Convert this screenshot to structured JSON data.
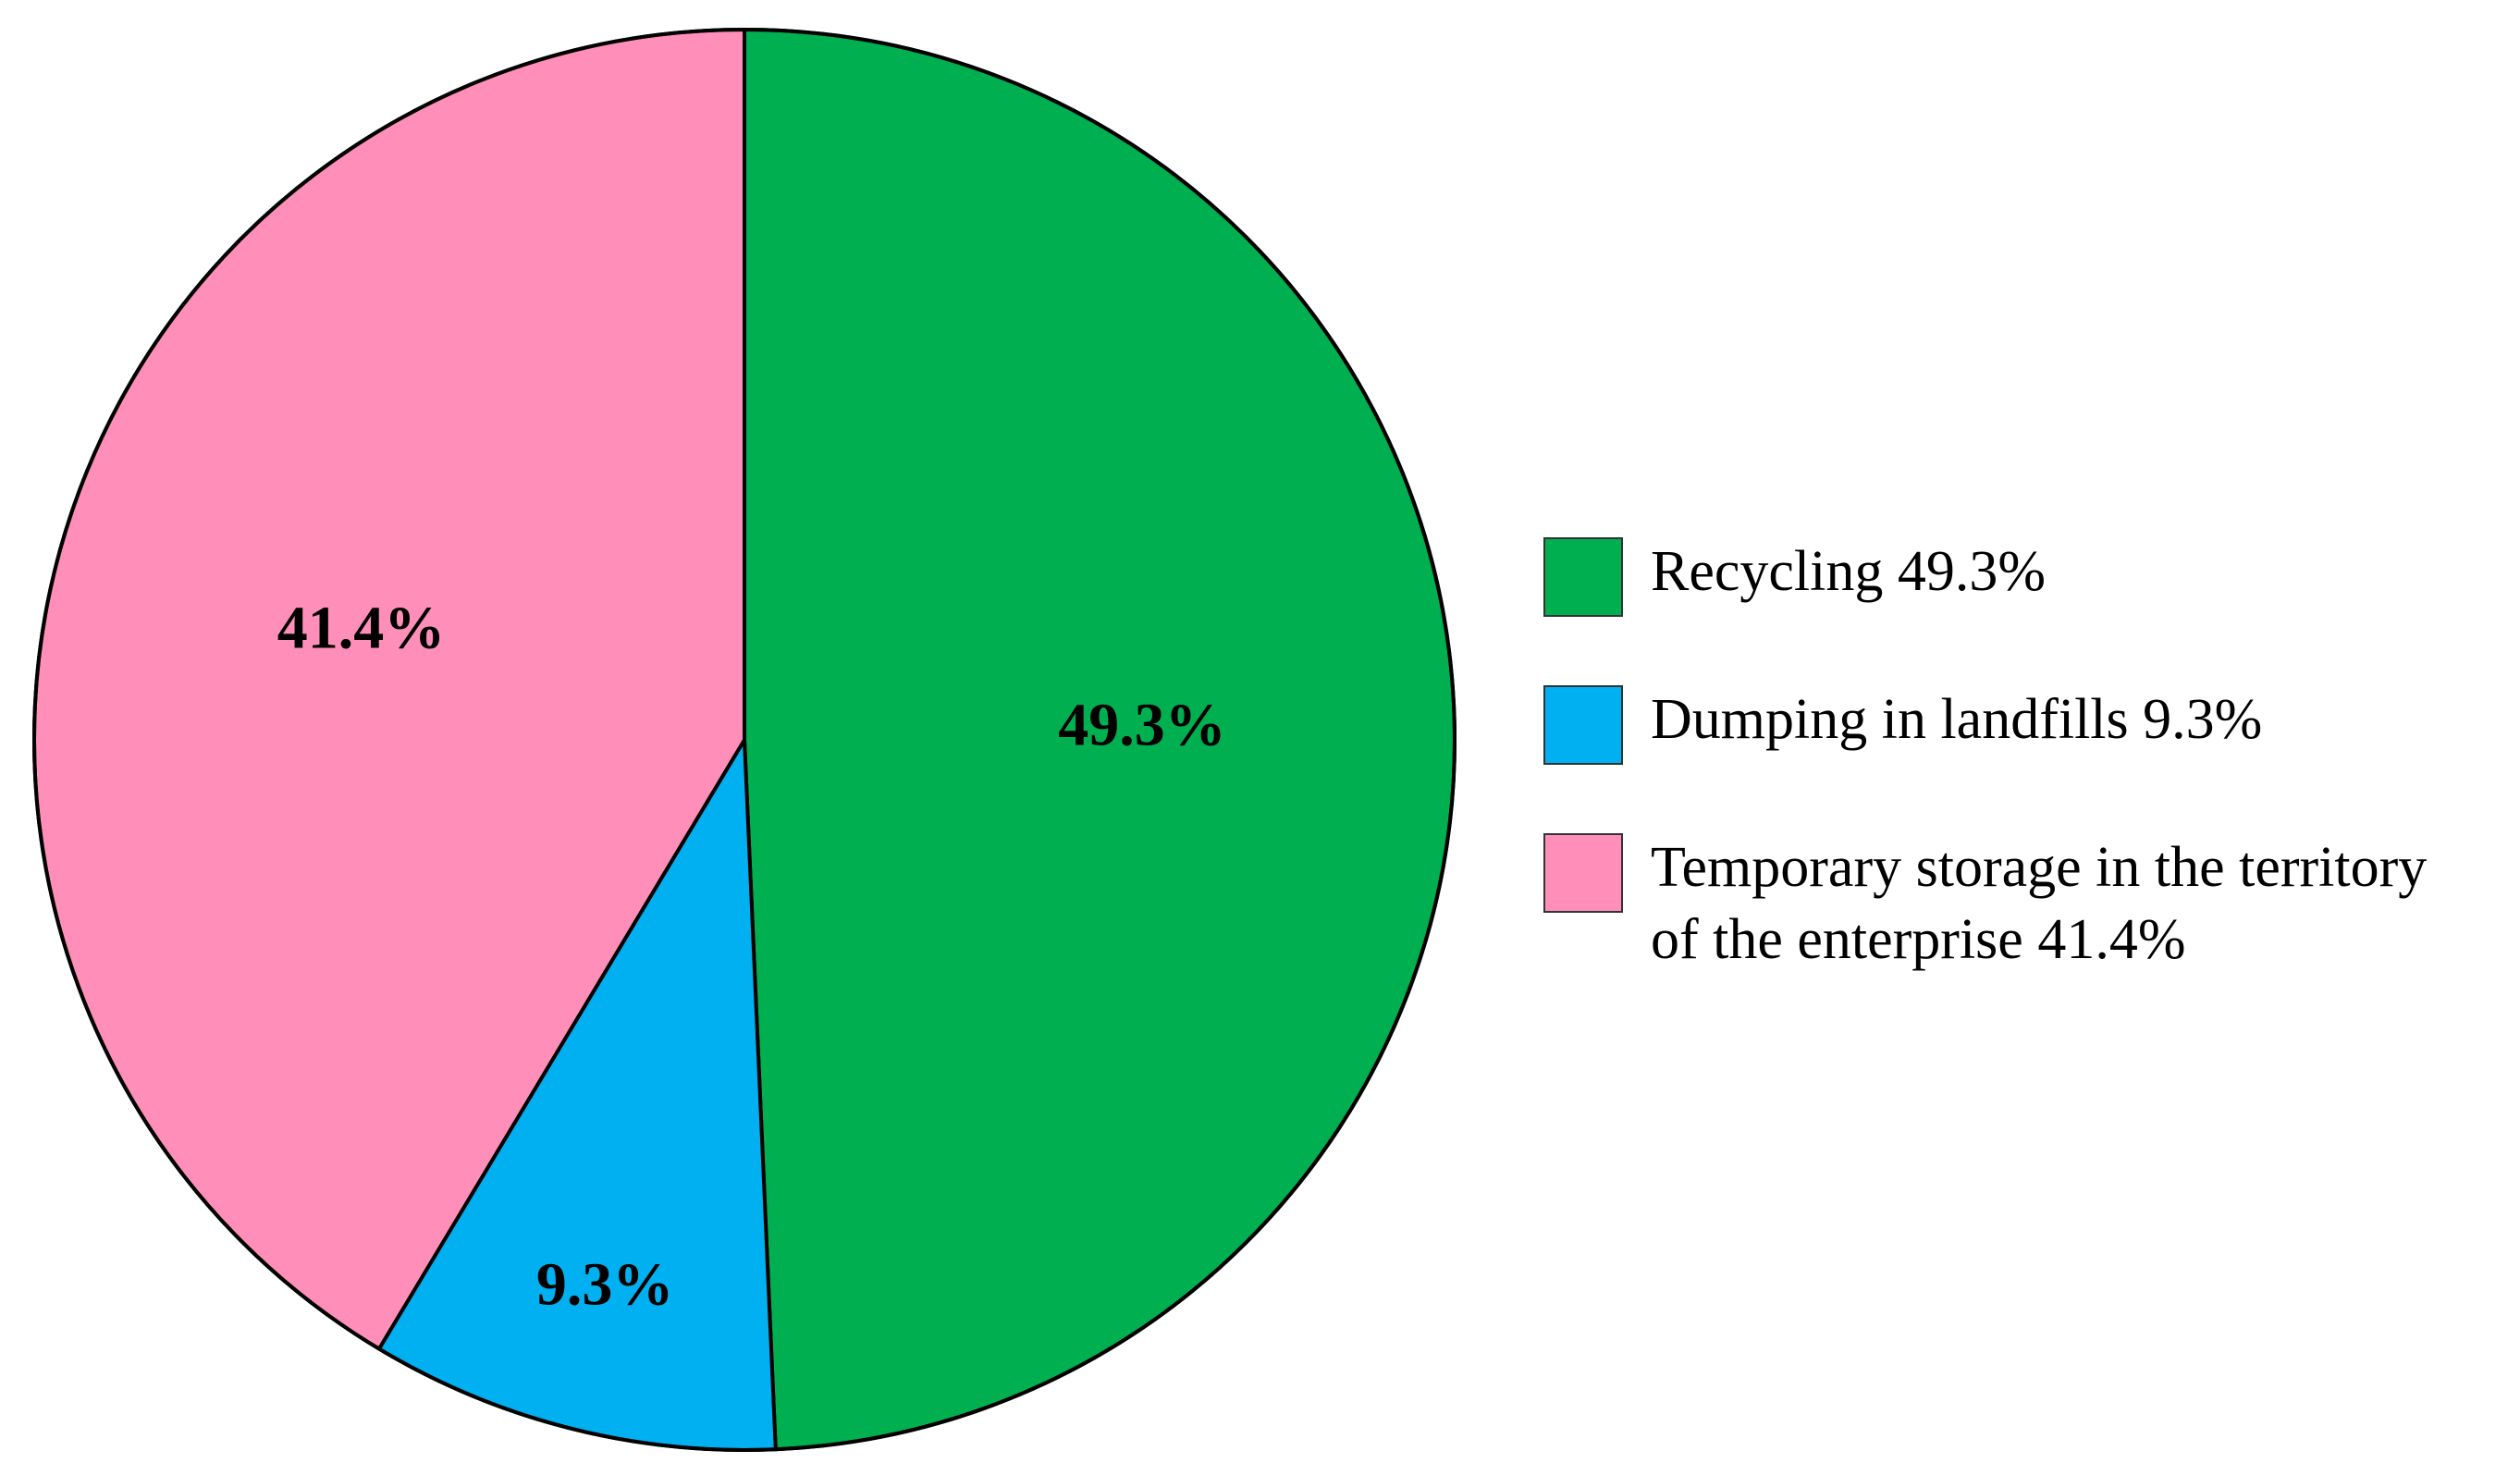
{
  "chart_data": {
    "type": "pie",
    "title": "",
    "start_angle_deg": 0,
    "direction": "clockwise",
    "legend_position": "right",
    "slices": [
      {
        "value": 49.3,
        "data_label": "49.3%",
        "legend_lines": [
          "Recycling 49.3%"
        ],
        "color": "#00b050"
      },
      {
        "value": 9.3,
        "data_label": "9.3%",
        "legend_lines": [
          "Dumping in landfills 9.3%"
        ],
        "color": "#00b0f0"
      },
      {
        "value": 41.4,
        "data_label": "41.4%",
        "legend_lines": [
          "Temporary storage in the territory",
          "of the enterprise 41.4%"
        ],
        "color": "#ff8fb8"
      }
    ]
  }
}
